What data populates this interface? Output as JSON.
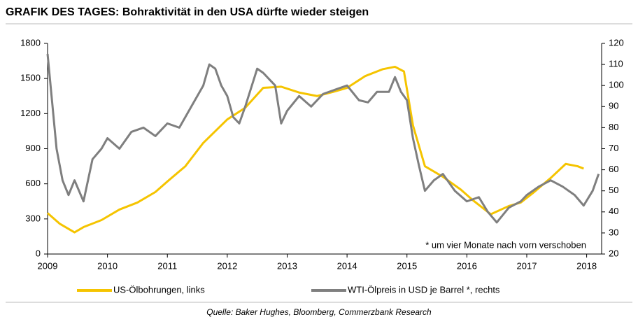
{
  "chart_data": {
    "type": "line",
    "title": "GRAFIK DES TAGES: Bohraktivität in den USA dürfte wieder steigen",
    "annotation": "* um vier Monate nach vorn  verschoben",
    "source": "Quelle: Baker Hughes, Bloomberg, Commerzbank Research",
    "xlim": [
      2009,
      2018.25
    ],
    "xticks": [
      2009,
      2010,
      2011,
      2012,
      2013,
      2014,
      2015,
      2016,
      2017,
      2018
    ],
    "ylim": [
      0,
      1800
    ],
    "yticks": [
      0,
      300,
      600,
      900,
      1200,
      1500,
      1800
    ],
    "y2lim": [
      20,
      120
    ],
    "y2ticks": [
      20,
      30,
      40,
      50,
      60,
      70,
      80,
      90,
      100,
      110,
      120
    ],
    "series": [
      {
        "name": "US-Ölbohrungen, links",
        "color": "#f5c400",
        "x": [
          2009.0,
          2009.2,
          2009.45,
          2009.6,
          2009.9,
          2010.2,
          2010.5,
          2010.8,
          2011.0,
          2011.3,
          2011.6,
          2011.9,
          2012.0,
          2012.3,
          2012.6,
          2012.9,
          2013.2,
          2013.5,
          2013.8,
          2014.0,
          2014.3,
          2014.6,
          2014.8,
          2014.95,
          2015.1,
          2015.3,
          2015.6,
          2015.9,
          2016.1,
          2016.4,
          2016.7,
          2016.9,
          2017.1,
          2017.4,
          2017.65,
          2017.85,
          2017.95
        ],
        "values": [
          350,
          260,
          185,
          230,
          290,
          380,
          440,
          530,
          620,
          750,
          950,
          1100,
          1150,
          1250,
          1420,
          1430,
          1380,
          1350,
          1390,
          1420,
          1520,
          1580,
          1600,
          1560,
          1100,
          750,
          660,
          550,
          460,
          340,
          410,
          440,
          520,
          650,
          770,
          750,
          730
        ]
      },
      {
        "name": "WTI-Ölpreis in USD je Barrel *, rechts",
        "color": "#7f7f7f",
        "axis": "y2",
        "x": [
          2009.0,
          2009.05,
          2009.15,
          2009.25,
          2009.35,
          2009.45,
          2009.6,
          2009.75,
          2009.9,
          2010.0,
          2010.2,
          2010.4,
          2010.6,
          2010.8,
          2011.0,
          2011.2,
          2011.4,
          2011.6,
          2011.7,
          2011.8,
          2011.9,
          2012.0,
          2012.1,
          2012.2,
          2012.3,
          2012.5,
          2012.6,
          2012.8,
          2012.9,
          2013.0,
          2013.2,
          2013.4,
          2013.6,
          2013.8,
          2014.0,
          2014.2,
          2014.35,
          2014.5,
          2014.7,
          2014.8,
          2014.9,
          2015.0,
          2015.1,
          2015.2,
          2015.3,
          2015.45,
          2015.6,
          2015.8,
          2016.0,
          2016.2,
          2016.35,
          2016.5,
          2016.7,
          2016.9,
          2017.0,
          2017.2,
          2017.4,
          2017.6,
          2017.8,
          2017.95,
          2018.1,
          2018.2
        ],
        "values": [
          115,
          100,
          70,
          55,
          48,
          55,
          45,
          65,
          70,
          75,
          70,
          78,
          80,
          76,
          82,
          80,
          90,
          100,
          110,
          108,
          100,
          95,
          85,
          82,
          90,
          108,
          106,
          100,
          82,
          88,
          95,
          90,
          96,
          98,
          100,
          93,
          92,
          97,
          97,
          104,
          97,
          93,
          75,
          62,
          50,
          55,
          58,
          50,
          45,
          47,
          40,
          35,
          42,
          45,
          48,
          52,
          55,
          52,
          48,
          43,
          50,
          58
        ]
      }
    ]
  }
}
